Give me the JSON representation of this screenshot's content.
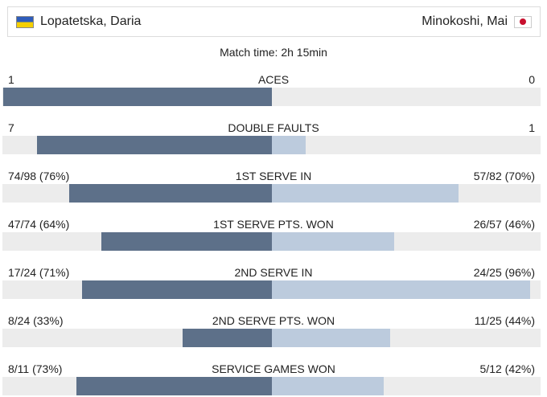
{
  "players": {
    "left": {
      "name": "Lopatetska, Daria",
      "flag": "ukraine-flag-icon"
    },
    "right": {
      "name": "Minokoshi, Mai",
      "flag": "japan-flag-icon"
    }
  },
  "match_time": "Match time: 2h 15min",
  "colors": {
    "left_bar": "#5d7089",
    "right_bar": "#bccbdd",
    "track": "#ececec"
  },
  "stats": [
    {
      "label": "ACES",
      "left": "1",
      "right": "0",
      "left_share": 1.0,
      "right_share": 0.0
    },
    {
      "label": "DOUBLE FAULTS",
      "left": "7",
      "right": "1",
      "left_share": 0.875,
      "right_share": 0.125
    },
    {
      "label": "1ST SERVE IN",
      "left": "74/98 (76%)",
      "right": "57/82 (70%)",
      "left_share": 0.755,
      "right_share": 0.695
    },
    {
      "label": "1ST SERVE PTS. WON",
      "left": "47/74 (64%)",
      "right": "26/57 (46%)",
      "left_share": 0.635,
      "right_share": 0.456
    },
    {
      "label": "2ND SERVE IN",
      "left": "17/24 (71%)",
      "right": "24/25 (96%)",
      "left_share": 0.708,
      "right_share": 0.96
    },
    {
      "label": "2ND SERVE PTS. WON",
      "left": "8/24 (33%)",
      "right": "11/25 (44%)",
      "left_share": 0.333,
      "right_share": 0.44
    },
    {
      "label": "SERVICE GAMES WON",
      "left": "8/11 (73%)",
      "right": "5/12 (42%)",
      "left_share": 0.727,
      "right_share": 0.417
    }
  ]
}
